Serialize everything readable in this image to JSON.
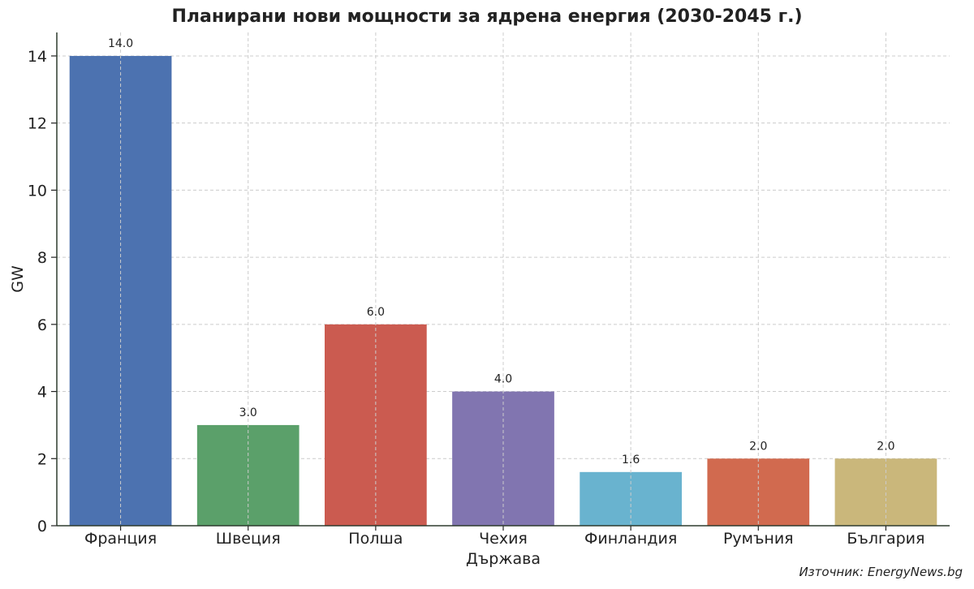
{
  "chart_data": {
    "type": "bar",
    "title": "Планирани нови мощности за ядрена енергия (2030-2045 г.)",
    "xlabel": "Държава",
    "ylabel": "GW",
    "categories": [
      "Франция",
      "Швеция",
      "Полша",
      "Чехия",
      "Финландия",
      "Румъния",
      "България"
    ],
    "values": [
      14.0,
      3.0,
      6.0,
      4.0,
      1.6,
      2.0,
      2.0
    ],
    "data_labels": [
      "14.0",
      "3.0",
      "6.0",
      "4.0",
      "1.6",
      "2.0",
      "2.0"
    ],
    "colors": [
      "#4c72b0",
      "#5ba06a",
      "#cb5b50",
      "#8175b0",
      "#69b3cf",
      "#d16a4f",
      "#cab77b"
    ],
    "ylim": [
      0,
      14.7
    ],
    "yticks": [
      0,
      2,
      4,
      6,
      8,
      10,
      12,
      14
    ],
    "grid": true,
    "legend": "none"
  },
  "source": "Източник: EnergyNews.bg"
}
